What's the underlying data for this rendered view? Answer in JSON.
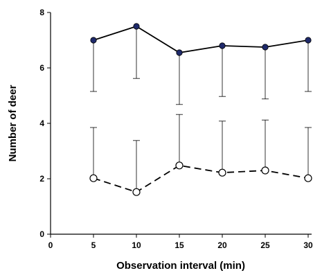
{
  "chart_data": {
    "type": "line",
    "title": "",
    "xlabel": "Observation interval (min)",
    "ylabel": "Number of deer",
    "xlim": [
      0,
      30
    ],
    "ylim": [
      0,
      8
    ],
    "x_ticks": [
      0,
      5,
      10,
      15,
      20,
      25,
      30
    ],
    "y_ticks": [
      0,
      2,
      4,
      6,
      8
    ],
    "grid": false,
    "legend": "none",
    "series": [
      {
        "marker": "filled-circle",
        "line_style": "solid",
        "color": "#1f2a6b",
        "error_bar_direction": "down",
        "x": [
          5,
          10,
          15,
          20,
          25,
          30
        ],
        "y": [
          7.0,
          7.5,
          6.55,
          6.8,
          6.75,
          7.0
        ],
        "error_lower": [
          5.15,
          5.62,
          4.68,
          4.97,
          4.88,
          5.15
        ]
      },
      {
        "marker": "open-circle",
        "line_style": "dashed",
        "color": "#000000",
        "error_bar_direction": "up",
        "x": [
          5,
          10,
          15,
          20,
          25,
          30
        ],
        "y": [
          2.02,
          1.52,
          2.48,
          2.22,
          2.3,
          2.02
        ],
        "error_upper": [
          3.85,
          3.38,
          4.32,
          4.08,
          4.12,
          3.85
        ]
      }
    ]
  }
}
